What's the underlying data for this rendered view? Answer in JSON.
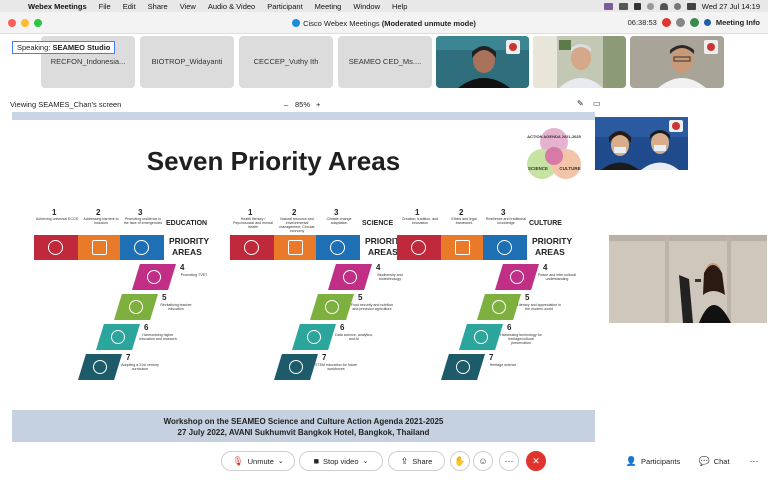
{
  "menubar": {
    "app_name": "Webex Meetings",
    "items": [
      "File",
      "Edit",
      "Share",
      "View",
      "Audio & Video",
      "Participant",
      "Meeting",
      "Window",
      "Help"
    ],
    "clock": "Wed 27 Jul  14:19"
  },
  "window": {
    "title": "Cisco Webex Meetings",
    "title_suffix": "(Moderated unmute mode)",
    "timer": "06:38:53",
    "meeting_info": "Meeting Info"
  },
  "thumbnails": [
    {
      "name": "RECFON_Indonesia..."
    },
    {
      "name": "BIOTROP_Widayanti"
    },
    {
      "name": "CECCEP_Vuthy Ith"
    },
    {
      "name": "SEAMEO CED_Ms...."
    }
  ],
  "speaking": {
    "label": "Speaking:",
    "name": "SEAMEO Studio"
  },
  "share": {
    "viewing": "Viewing SEAMES_Chan's screen",
    "zoom": "85%"
  },
  "slide": {
    "title": "Seven Priority Areas",
    "footer_line1": "Workshop on the  SEAMEO Science and Culture Action Agenda 2021-2025",
    "footer_line2": "27 July 2022,  AVANI Sukhumvit Bangkok Hotel, Bangkok, Thailand",
    "badge_top": "ACTION AGENDA 2021-2025",
    "badge_left": "SCIENCE",
    "badge_right": "CULTURE",
    "panels": [
      {
        "heading": "EDUCATION",
        "sub1": "PRIORITY",
        "sub2": "AREAS",
        "items": [
          {
            "num": "1",
            "text": "Achieving universal ECCE"
          },
          {
            "num": "2",
            "text": "Addressing barriers to inclusion"
          },
          {
            "num": "3",
            "text": "Promoting resilience in the face of emergencies"
          },
          {
            "num": "4",
            "text": "Promoting TVET"
          },
          {
            "num": "5",
            "text": "Revitalising teacher education"
          },
          {
            "num": "6",
            "text": "Harmonising higher education and research"
          },
          {
            "num": "7",
            "text": "Adopting a 21st century curriculum"
          }
        ]
      },
      {
        "heading": "SCIENCE",
        "sub1": "PRIORITY",
        "sub2": "AREAS",
        "items": [
          {
            "num": "1",
            "text": "Health literacy / Psychosocial and mental health"
          },
          {
            "num": "2",
            "text": "Natural resource and environmental management; Circular economy"
          },
          {
            "num": "3",
            "text": "Climate change adaptation"
          },
          {
            "num": "4",
            "text": "Biodiversity and biotechnology"
          },
          {
            "num": "5",
            "text": "Food security and nutrition and precision agriculture"
          },
          {
            "num": "6",
            "text": "Data science, analytics, and AI"
          },
          {
            "num": "7",
            "text": "STEM education for future workforces"
          }
        ]
      },
      {
        "heading": "CULTURE",
        "sub1": "PRIORITY",
        "sub2": "AREAS",
        "items": [
          {
            "num": "1",
            "text": "Creation, tradition, and innovation"
          },
          {
            "num": "2",
            "text": "Ethics and legal framework"
          },
          {
            "num": "3",
            "text": "Resilience and traditional knowledge"
          },
          {
            "num": "4",
            "text": "Peace and inter-cultural understanding"
          },
          {
            "num": "5",
            "text": "Literacy and appreciation in the modern world"
          },
          {
            "num": "6",
            "text": "Harnessing technology for heritage/cultural preservation"
          },
          {
            "num": "7",
            "text": "Heritage science"
          }
        ]
      }
    ]
  },
  "controls": {
    "unmute": "Unmute",
    "stop_video": "Stop video",
    "share": "Share",
    "participants": "Participants",
    "chat": "Chat"
  },
  "colors": {
    "tile1": "#c0293b",
    "tile2": "#e97a2a",
    "tile3": "#1f6fb5",
    "tile4": "#c02e85",
    "tile5": "#7db03e",
    "tile6": "#2ca59d",
    "tile7": "#1d5a6a",
    "leave": "#e0342f",
    "accent": "#1d8cd9"
  },
  "icons": [
    "apple-icon",
    "microphone-muted-icon",
    "video-icon",
    "share-icon",
    "raise-hand-icon",
    "reactions-icon",
    "more-icon",
    "leave-icon",
    "participants-icon",
    "chat-icon"
  ]
}
